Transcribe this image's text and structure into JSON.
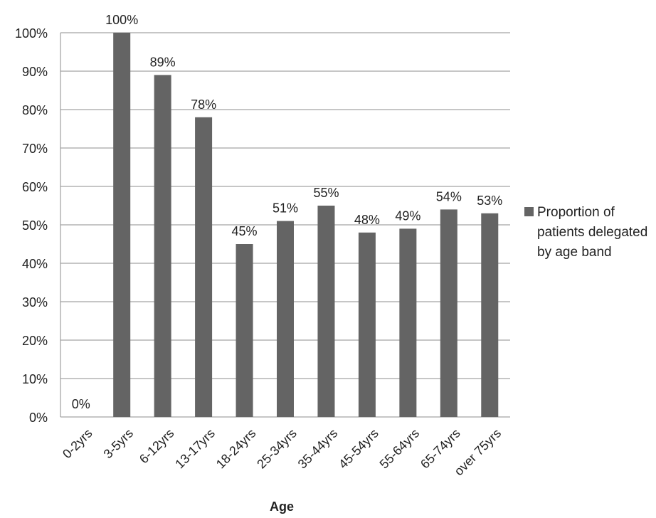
{
  "chart_data": {
    "type": "bar",
    "categories": [
      "0-2yrs",
      "3-5yrs",
      "6-12yrs",
      "13-17yrs",
      "18-24yrs",
      "25-34yrs",
      "35-44yrs",
      "45-54yrs",
      "55-64yrs",
      "65-74yrs",
      "over 75yrs"
    ],
    "series": [
      {
        "name": "Proportion of patients delegated by age band",
        "values": [
          0,
          100,
          89,
          78,
          45,
          51,
          55,
          48,
          49,
          54,
          53
        ]
      }
    ],
    "data_labels": [
      "0%",
      "100%",
      "89%",
      "78%",
      "45%",
      "51%",
      "55%",
      "48%",
      "49%",
      "54%",
      "53%"
    ],
    "y_ticks": [
      "0%",
      "10%",
      "20%",
      "30%",
      "40%",
      "50%",
      "60%",
      "70%",
      "80%",
      "90%",
      "100%"
    ],
    "title": "",
    "xlabel": "Age",
    "ylabel": "",
    "ylim": [
      0,
      100
    ],
    "grid": true,
    "legend_position": "right",
    "colors": {
      "bar": "#646464",
      "grid": "#8c8c8c",
      "text": "#222222"
    }
  }
}
